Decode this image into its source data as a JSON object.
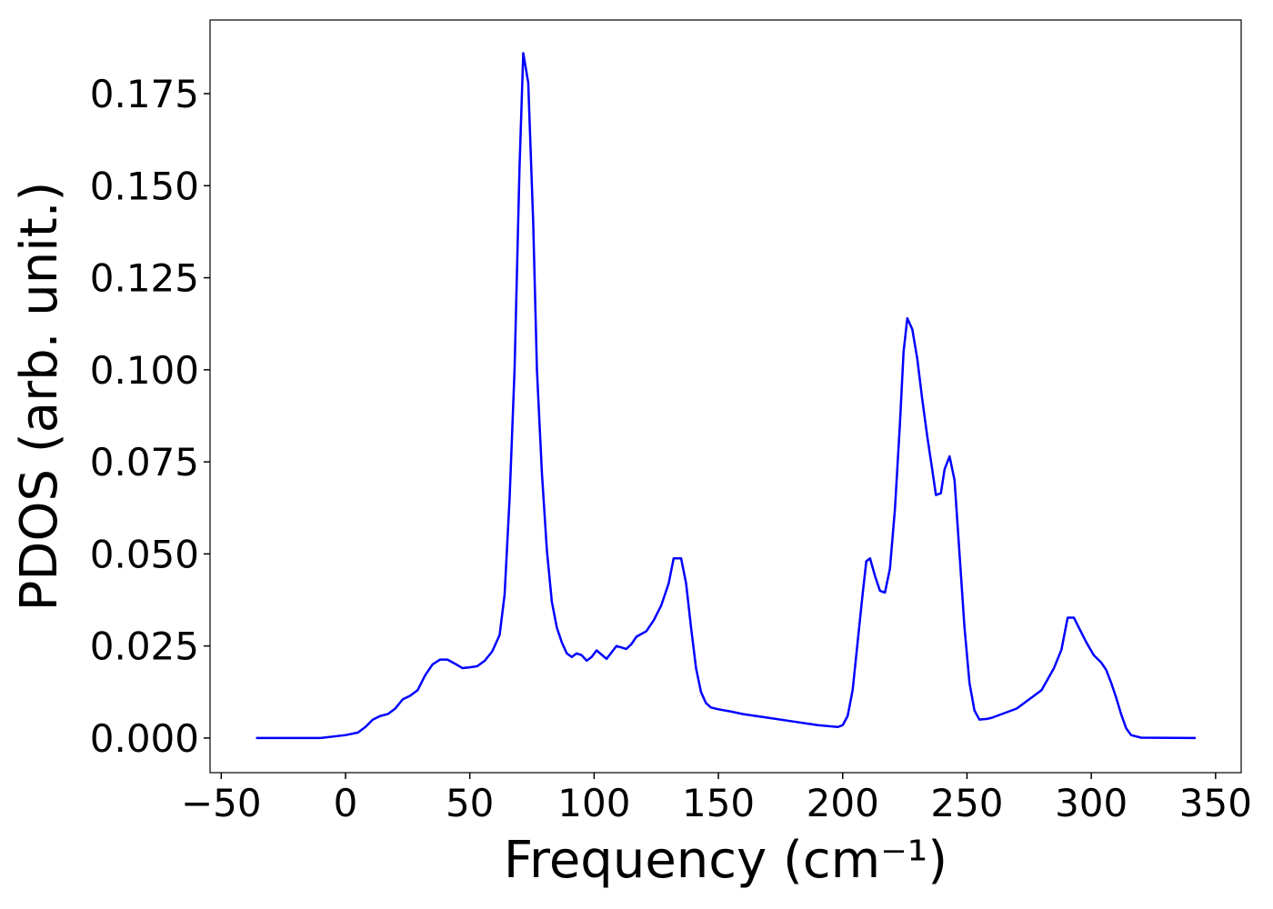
{
  "chart_data": {
    "type": "line",
    "xlabel": "Frequency (cm⁻¹)",
    "ylabel": "PDOS (arb. unit.)",
    "xlim": [
      -54.5,
      360.3
    ],
    "ylim": [
      -0.0094,
      0.195
    ],
    "xticks": [
      {
        "value": -50,
        "label": "−50"
      },
      0,
      50,
      100,
      150,
      200,
      250,
      300,
      350
    ],
    "yticks": [
      {
        "value": 0,
        "label": "0.000"
      },
      {
        "value": 0.025,
        "label": "0.025"
      },
      {
        "value": 0.05,
        "label": "0.050"
      },
      {
        "value": 0.075,
        "label": "0.075"
      },
      {
        "value": 0.1,
        "label": "0.100"
      },
      {
        "value": 0.125,
        "label": "0.125"
      },
      {
        "value": 0.15,
        "label": "0.150"
      },
      {
        "value": 0.175,
        "label": "0.175"
      }
    ],
    "series": [
      {
        "color": "#0000ff",
        "x": [
          -36,
          -10,
          0,
          5,
          8,
          11,
          14,
          17,
          20,
          23,
          26,
          29,
          32,
          35,
          38,
          41,
          44,
          47,
          50,
          53,
          56,
          59,
          62,
          64,
          66,
          68,
          70,
          71.5,
          73.5,
          75.5,
          77,
          79,
          81,
          83,
          85,
          87,
          89,
          91,
          93,
          95,
          97,
          99,
          101,
          105,
          109,
          113,
          115,
          117,
          121,
          124,
          127,
          130,
          132,
          135,
          137,
          139,
          141,
          143,
          145,
          147,
          150,
          155,
          160,
          170,
          180,
          190,
          198,
          200,
          202,
          204,
          206,
          208,
          209.5,
          211,
          213,
          215,
          217,
          219,
          221,
          223,
          224.5,
          226,
          228,
          230,
          232,
          234,
          236,
          237.5,
          239.5,
          241,
          243,
          245,
          247,
          249,
          251,
          253,
          255,
          258,
          260,
          270,
          275,
          280,
          285,
          288,
          290.5,
          293,
          295,
          298,
          301,
          304,
          306,
          308,
          310,
          312,
          314,
          316,
          320,
          342
        ],
        "values": [
          0,
          0,
          0.0008,
          0.0015,
          0.003,
          0.005,
          0.006,
          0.0065,
          0.008,
          0.0105,
          0.0115,
          0.013,
          0.017,
          0.02,
          0.0213,
          0.0213,
          0.0202,
          0.019,
          0.0192,
          0.0195,
          0.021,
          0.0235,
          0.028,
          0.039,
          0.065,
          0.1,
          0.155,
          0.186,
          0.178,
          0.14,
          0.1,
          0.072,
          0.051,
          0.037,
          0.03,
          0.026,
          0.023,
          0.022,
          0.023,
          0.0225,
          0.021,
          0.022,
          0.0238,
          0.0215,
          0.025,
          0.0242,
          0.0255,
          0.0275,
          0.029,
          0.032,
          0.036,
          0.042,
          0.0488,
          0.0488,
          0.042,
          0.03,
          0.019,
          0.0125,
          0.0095,
          0.0083,
          0.0078,
          0.0072,
          0.0065,
          0.0055,
          0.0045,
          0.0035,
          0.003,
          0.0035,
          0.006,
          0.013,
          0.026,
          0.039,
          0.048,
          0.0488,
          0.044,
          0.04,
          0.0395,
          0.046,
          0.062,
          0.085,
          0.105,
          0.114,
          0.111,
          0.103,
          0.092,
          0.082,
          0.073,
          0.066,
          0.0665,
          0.073,
          0.0765,
          0.07,
          0.05,
          0.03,
          0.015,
          0.0075,
          0.005,
          0.0052,
          0.0055,
          0.008,
          0.0105,
          0.013,
          0.019,
          0.024,
          0.0327,
          0.0327,
          0.03,
          0.026,
          0.0225,
          0.0205,
          0.0185,
          0.015,
          0.011,
          0.0065,
          0.0027,
          0.0008,
          0.0001,
          0
        ]
      }
    ]
  }
}
